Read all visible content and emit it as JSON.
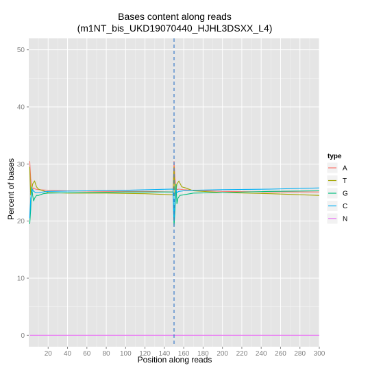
{
  "chart_data": {
    "type": "line",
    "title": "Bases content along reads",
    "subtitle": "(m1NT_bis_UKD19070440_HJHL3DSXX_L4)",
    "xlabel": "Position along reads",
    "ylabel": "Percent of bases",
    "xlim": [
      0,
      300
    ],
    "ylim": [
      -2,
      52
    ],
    "xticks": [
      20,
      40,
      60,
      80,
      100,
      120,
      140,
      160,
      180,
      200,
      220,
      240,
      260,
      280,
      300
    ],
    "yticks": [
      0,
      10,
      20,
      30,
      40,
      50
    ],
    "grid": true,
    "vline_x": 150,
    "legend": {
      "title": "type",
      "position": "right"
    },
    "series": [
      {
        "name": "A",
        "color": "#F8766D",
        "points": [
          [
            1,
            30.5
          ],
          [
            2,
            27.5
          ],
          [
            3,
            26.0
          ],
          [
            4,
            25.5
          ],
          [
            5,
            25.8
          ],
          [
            7,
            25.6
          ],
          [
            10,
            25.5
          ],
          [
            20,
            25.4
          ],
          [
            40,
            25.3
          ],
          [
            80,
            25.2
          ],
          [
            120,
            25.2
          ],
          [
            149,
            25.1
          ],
          [
            150,
            30.5
          ],
          [
            151,
            27.5
          ],
          [
            152,
            26.0
          ],
          [
            153,
            25.5
          ],
          [
            155,
            25.6
          ],
          [
            160,
            25.5
          ],
          [
            170,
            25.4
          ],
          [
            200,
            25.2
          ],
          [
            250,
            25.1
          ],
          [
            300,
            25.1
          ]
        ]
      },
      {
        "name": "T",
        "color": "#A3A500",
        "points": [
          [
            1,
            29.5
          ],
          [
            2,
            24.5
          ],
          [
            3,
            25.5
          ],
          [
            4,
            26.5
          ],
          [
            5,
            26.8
          ],
          [
            6,
            27.0
          ],
          [
            8,
            26.0
          ],
          [
            10,
            25.6
          ],
          [
            15,
            25.3
          ],
          [
            20,
            25.0
          ],
          [
            40,
            24.9
          ],
          [
            80,
            24.9
          ],
          [
            120,
            24.8
          ],
          [
            149,
            24.6
          ],
          [
            150,
            29.5
          ],
          [
            151,
            24.0
          ],
          [
            152,
            25.5
          ],
          [
            153,
            26.5
          ],
          [
            155,
            27.0
          ],
          [
            158,
            26.0
          ],
          [
            162,
            25.8
          ],
          [
            170,
            25.3
          ],
          [
            200,
            25.0
          ],
          [
            250,
            24.8
          ],
          [
            300,
            24.5
          ]
        ]
      },
      {
        "name": "G",
        "color": "#00BF7D",
        "points": [
          [
            1,
            19.5
          ],
          [
            2,
            22.0
          ],
          [
            3,
            26.0
          ],
          [
            4,
            24.5
          ],
          [
            5,
            23.5
          ],
          [
            6,
            24.0
          ],
          [
            8,
            24.5
          ],
          [
            10,
            24.5
          ],
          [
            15,
            24.8
          ],
          [
            20,
            24.9
          ],
          [
            60,
            25.0
          ],
          [
            100,
            25.1
          ],
          [
            149,
            25.1
          ],
          [
            150,
            19.0
          ],
          [
            151,
            22.0
          ],
          [
            152,
            26.5
          ],
          [
            153,
            23.0
          ],
          [
            154,
            24.0
          ],
          [
            156,
            24.5
          ],
          [
            160,
            24.6
          ],
          [
            170,
            24.9
          ],
          [
            200,
            25.0
          ],
          [
            250,
            25.2
          ],
          [
            300,
            25.3
          ]
        ]
      },
      {
        "name": "C",
        "color": "#00B0F6",
        "points": [
          [
            1,
            20.5
          ],
          [
            2,
            24.0
          ],
          [
            3,
            25.0
          ],
          [
            4,
            25.5
          ],
          [
            5,
            25.2
          ],
          [
            7,
            25.0
          ],
          [
            10,
            25.0
          ],
          [
            20,
            25.2
          ],
          [
            60,
            25.3
          ],
          [
            100,
            25.4
          ],
          [
            149,
            25.6
          ],
          [
            150,
            20.0
          ],
          [
            151,
            24.5
          ],
          [
            152,
            25.5
          ],
          [
            153,
            25.0
          ],
          [
            155,
            25.2
          ],
          [
            160,
            25.3
          ],
          [
            170,
            25.4
          ],
          [
            200,
            25.5
          ],
          [
            250,
            25.6
          ],
          [
            300,
            25.8
          ]
        ]
      },
      {
        "name": "N",
        "color": "#E76BF3",
        "points": [
          [
            1,
            0.0
          ],
          [
            300,
            0.0
          ]
        ]
      }
    ]
  }
}
